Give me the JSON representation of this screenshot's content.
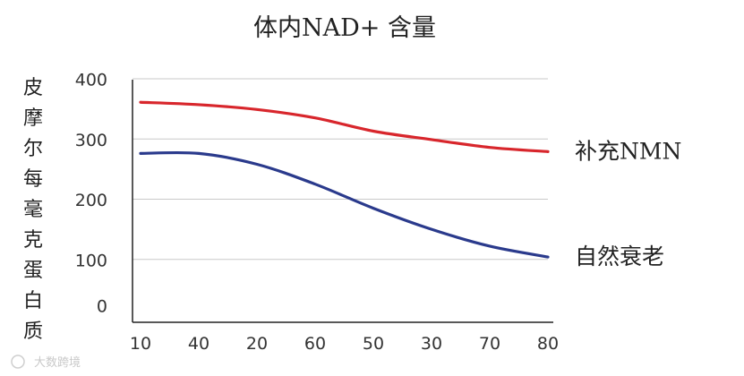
{
  "chart_data": {
    "type": "line",
    "title": "体内NAD+ 含量",
    "xlabel": "",
    "ylabel": "皮摩尔每毫克蛋白质",
    "categories": [
      "10",
      "40",
      "20",
      "60",
      "50",
      "30",
      "70",
      "80"
    ],
    "ylim": [
      0,
      400
    ],
    "yticks": [
      0,
      100,
      200,
      300,
      400
    ],
    "grid": true,
    "series": [
      {
        "name": "补充NMN",
        "color": "#d8262c",
        "values": [
          361,
          357,
          349,
          335,
          313,
          299,
          286,
          279
        ]
      },
      {
        "name": "自然衰老",
        "color": "#2a3a8c",
        "values": [
          276,
          276,
          258,
          225,
          185,
          150,
          122,
          104
        ]
      }
    ]
  },
  "watermark": "大数跨境"
}
